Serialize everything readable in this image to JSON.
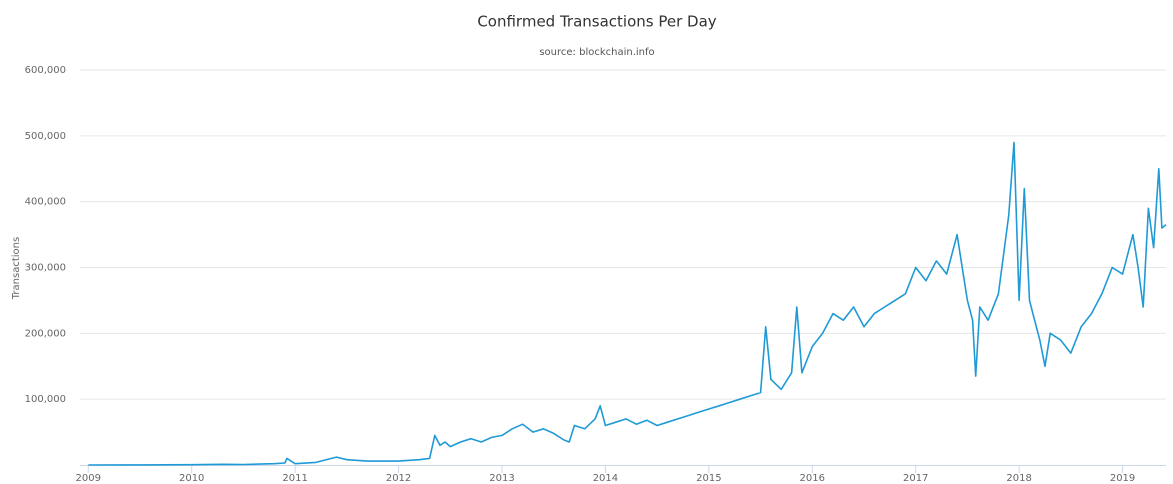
{
  "chart_data": {
    "type": "line",
    "title": "Confirmed Transactions Per Day",
    "subtitle": "source: blockchain.info",
    "y_label": "Transactions",
    "color": "#1f9ad6",
    "grid": true,
    "xlim": [
      2008.92,
      2019.42
    ],
    "ylim": [
      0,
      600000
    ],
    "xticks": [
      2009,
      2010,
      2011,
      2012,
      2013,
      2014,
      2015,
      2016,
      2017,
      2018,
      2019
    ],
    "yticks": [
      {
        "value": 100000,
        "label": "100,000"
      },
      {
        "value": 200000,
        "label": "200,000"
      },
      {
        "value": 300000,
        "label": "300,000"
      },
      {
        "value": 400000,
        "label": "400,000"
      },
      {
        "value": 500000,
        "label": "500,000"
      },
      {
        "value": 600000,
        "label": "600,000"
      }
    ],
    "x": [
      2009,
      2009.5,
      2010,
      2010.3,
      2010.5,
      2010.8,
      2010.9,
      2010.92,
      2011,
      2011.2,
      2011.4,
      2011.5,
      2011.7,
      2012,
      2012.2,
      2012.3,
      2012.35,
      2012.4,
      2012.45,
      2012.5,
      2012.6,
      2012.7,
      2012.8,
      2012.9,
      2013,
      2013.1,
      2013.2,
      2013.3,
      2013.4,
      2013.5,
      2013.6,
      2013.65,
      2013.7,
      2013.8,
      2013.9,
      2013.95,
      2014,
      2014.1,
      2014.2,
      2014.3,
      2014.4,
      2014.5,
      2014.6,
      2014.7,
      2014.8,
      2014.9,
      2015,
      2015.1,
      2015.2,
      2015.3,
      2015.4,
      2015.5,
      2015.55,
      2015.6,
      2015.7,
      2015.8,
      2015.85,
      2015.9,
      2016,
      2016.1,
      2016.2,
      2016.3,
      2016.4,
      2016.5,
      2016.6,
      2016.7,
      2016.8,
      2016.9,
      2017,
      2017.1,
      2017.2,
      2017.3,
      2017.4,
      2017.45,
      2017.5,
      2017.55,
      2017.58,
      2017.62,
      2017.7,
      2017.8,
      2017.85,
      2017.9,
      2017.95,
      2018,
      2018.05,
      2018.1,
      2018.15,
      2018.2,
      2018.25,
      2018.3,
      2018.4,
      2018.5,
      2018.6,
      2018.7,
      2018.8,
      2018.9,
      2019,
      2019.05,
      2019.1,
      2019.15,
      2019.2,
      2019.25,
      2019.3,
      2019.35,
      2019.38,
      2019.42
    ],
    "values": [
      0,
      200,
      500,
      1000,
      800,
      2000,
      3000,
      10000,
      2000,
      4000,
      12000,
      8000,
      6000,
      6000,
      8000,
      10000,
      45000,
      30000,
      35000,
      28000,
      35000,
      40000,
      35000,
      42000,
      45000,
      55000,
      62000,
      50000,
      55000,
      48000,
      38000,
      35000,
      60000,
      55000,
      70000,
      90000,
      60000,
      65000,
      70000,
      62000,
      68000,
      60000,
      65000,
      70000,
      75000,
      80000,
      85000,
      90000,
      95000,
      100000,
      105000,
      110000,
      210000,
      130000,
      115000,
      140000,
      240000,
      140000,
      180000,
      200000,
      230000,
      220000,
      240000,
      210000,
      230000,
      240000,
      250000,
      260000,
      300000,
      280000,
      310000,
      290000,
      350000,
      300000,
      250000,
      220000,
      135000,
      240000,
      220000,
      260000,
      320000,
      380000,
      490000,
      250000,
      420000,
      250000,
      220000,
      190000,
      150000,
      200000,
      190000,
      170000,
      210000,
      230000,
      260000,
      300000,
      290000,
      320000,
      350000,
      300000,
      240000,
      390000,
      330000,
      450000,
      360000,
      365000
    ]
  }
}
